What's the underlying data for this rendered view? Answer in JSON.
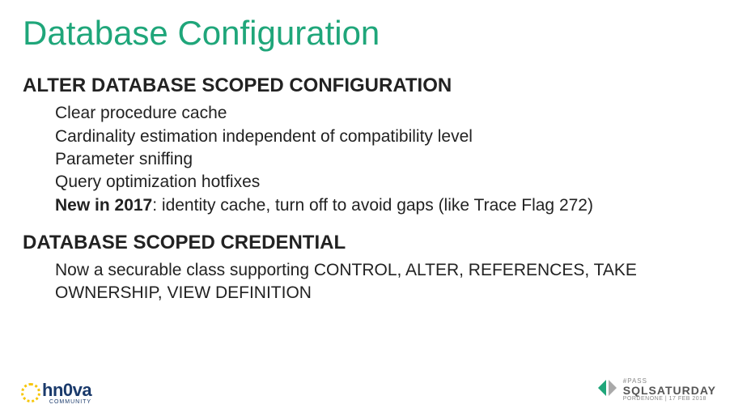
{
  "title": "Database Configuration",
  "sections": [
    {
      "heading": "ALTER DATABASE SCOPED CONFIGURATION",
      "items": [
        {
          "text": "Clear procedure cache"
        },
        {
          "text": "Cardinality estimation independent of compatibility level"
        },
        {
          "text": "Parameter sniffing"
        },
        {
          "text": "Query optimization hotfixes"
        },
        {
          "bold": "New in 2017",
          "text": ": identity cache, turn off to avoid gaps (like Trace Flag 272)"
        }
      ]
    },
    {
      "heading": "DATABASE SCOPED CREDENTIAL",
      "items": [
        {
          "text": "Now a securable class supporting CONTROL, ALTER, REFERENCES, TAKE OWNERSHIP, VIEW DEFINITION"
        }
      ]
    }
  ],
  "footer": {
    "left_logo": {
      "name": "hn0va",
      "sub": "COMMUNITY"
    },
    "right_logo": {
      "pass": "#PASS",
      "main": "SQLSATURDAY",
      "sub": "PORDENONE | 17 FEB 2018"
    }
  },
  "colors": {
    "title": "#1fa67a",
    "text": "#222222",
    "background": "#ffffff",
    "logo_yellow": "#f6c60a",
    "logo_blue": "#1a3a6b",
    "angle_green": "#1fa67a",
    "angle_grey": "#a9a9a9"
  },
  "fonts": {
    "title_size_pt": 42,
    "heading_size_pt": 24,
    "body_size_pt": 21
  }
}
